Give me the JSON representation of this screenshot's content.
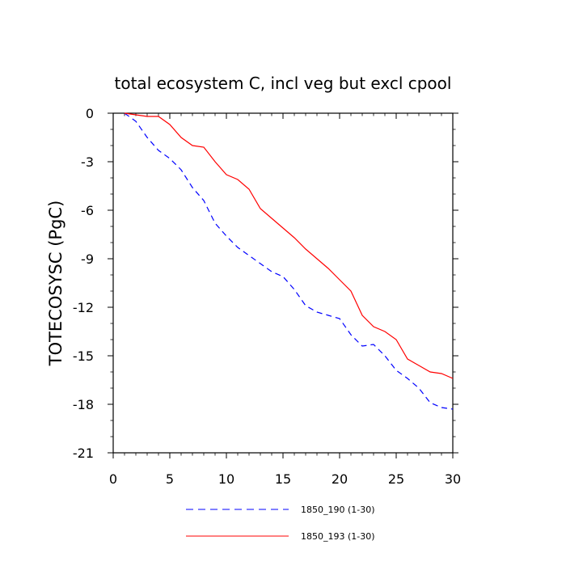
{
  "chart_data": {
    "type": "line",
    "title": "total ecosystem C, incl veg but excl cpool",
    "xlabel": "",
    "ylabel": "TOTECOSYSC  (PgC)",
    "xlim": [
      0,
      30
    ],
    "ylim": [
      -21,
      0
    ],
    "xticks": [
      0,
      5,
      10,
      15,
      20,
      25,
      30
    ],
    "xtick_labels": [
      "0",
      "5",
      "10",
      "15",
      "20",
      "25",
      "30"
    ],
    "yticks": [
      0,
      -3,
      -6,
      -9,
      -12,
      -15,
      -18,
      -21
    ],
    "ytick_labels": [
      "0",
      "-3",
      "-6",
      "-9",
      "-12",
      "-15",
      "-18",
      "-21"
    ],
    "x": [
      1,
      2,
      3,
      4,
      5,
      6,
      7,
      8,
      9,
      10,
      11,
      12,
      13,
      14,
      15,
      16,
      17,
      18,
      19,
      20,
      21,
      22,
      23,
      24,
      25,
      26,
      27,
      28,
      29,
      30
    ],
    "series": [
      {
        "name": "1850_190 (1-30)",
        "color": "#0000ff",
        "style": "dashed",
        "values": [
          0,
          -0.5,
          -1.5,
          -2.3,
          -2.8,
          -3.5,
          -4.6,
          -5.4,
          -6.8,
          -7.6,
          -8.3,
          -8.8,
          -9.3,
          -9.8,
          -10.1,
          -10.9,
          -11.9,
          -12.3,
          -12.5,
          -12.7,
          -13.7,
          -14.4,
          -14.3,
          -15.0,
          -15.9,
          -16.4,
          -17.0,
          -17.9,
          -18.2,
          -18.3
        ]
      },
      {
        "name": "1850_193 (1-30)",
        "color": "#ff0000",
        "style": "solid",
        "values": [
          0,
          -0.1,
          -0.2,
          -0.2,
          -0.7,
          -1.5,
          -2.0,
          -2.1,
          -3.0,
          -3.8,
          -4.1,
          -4.7,
          -5.9,
          -6.5,
          -7.1,
          -7.7,
          -8.4,
          -9.0,
          -9.6,
          -10.3,
          -11.0,
          -12.5,
          -13.2,
          -13.5,
          -14.0,
          -15.2,
          -15.6,
          -16.0,
          -16.1,
          -16.4
        ]
      }
    ],
    "legend_position": "bottom"
  }
}
